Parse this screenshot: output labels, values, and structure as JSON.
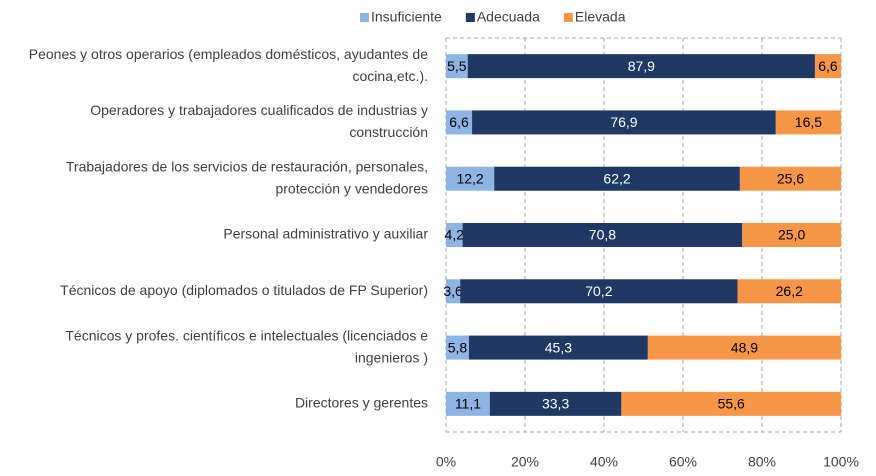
{
  "chart_data": {
    "type": "stacked_barh",
    "categories": [
      [
        "Peones y otros operarios (empleados domésticos, ayudantes de",
        "cocina,etc.)."
      ],
      [
        "Operadores y trabajadores cualificados de industrias y",
        "construcción"
      ],
      [
        "Trabajadores de los servicios de restauración, personales,",
        "protección y vendedores"
      ],
      [
        "Personal administrativo y auxiliar"
      ],
      [
        "Técnicos de apoyo (diplomados o titulados de FP Superior)"
      ],
      [
        "Técnicos y profes. científicos e intelectuales (licenciados e",
        "ingenieros )"
      ],
      [
        "Directores y gerentes"
      ]
    ],
    "series": [
      {
        "name": "Insuficiente",
        "color": "#8db4e2",
        "label_color": "#000000",
        "values": [
          5.5,
          6.6,
          12.2,
          4.2,
          3.6,
          5.8,
          11.1
        ],
        "value_labels": [
          "5,5",
          "6,6",
          "12,2",
          "4,2",
          "3,6",
          "5,8",
          "11,1"
        ]
      },
      {
        "name": "Adecuada",
        "color": "#1f3864",
        "label_color": "#ffffff",
        "values": [
          87.9,
          76.9,
          62.2,
          70.8,
          70.2,
          45.3,
          33.3
        ],
        "value_labels": [
          "87,9",
          "76,9",
          "62,2",
          "70,8",
          "70,2",
          "45,3",
          "33,3"
        ]
      },
      {
        "name": "Elevada",
        "color": "#f79646",
        "label_color": "#000000",
        "values": [
          6.6,
          16.5,
          25.6,
          25.0,
          26.2,
          48.9,
          55.6
        ],
        "value_labels": [
          "6,6",
          "16,5",
          "25,6",
          "25,0",
          "26,2",
          "48,9",
          "55,6"
        ]
      }
    ],
    "xlim": [
      0,
      100
    ],
    "xticks": [
      {
        "value": 0,
        "label": "0%"
      },
      {
        "value": 20,
        "label": "20%"
      },
      {
        "value": 40,
        "label": "40%"
      },
      {
        "value": 60,
        "label": "60%"
      },
      {
        "value": 80,
        "label": "80%"
      },
      {
        "value": 100,
        "label": "100%"
      }
    ],
    "grid": true,
    "legend": "top"
  }
}
